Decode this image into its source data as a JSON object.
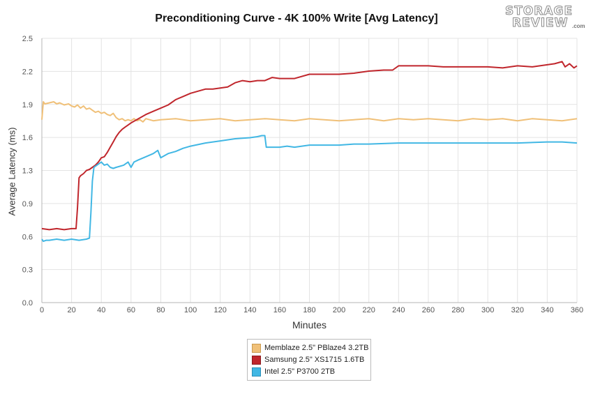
{
  "chart_data": {
    "type": "line",
    "title": "Preconditioning Curve - 4K 100% Write [Avg Latency]",
    "xlabel": "Minutes",
    "ylabel": "Average Latency (ms)",
    "xlim": [
      0,
      360
    ],
    "ylim": [
      0,
      2.5
    ],
    "xticks": [
      "0",
      "20",
      "40",
      "60",
      "80",
      "100",
      "120",
      "140",
      "160",
      "180",
      "200",
      "220",
      "240",
      "260",
      "280",
      "300",
      "320",
      "340",
      "360"
    ],
    "yticks": [
      "0.0",
      "0.3",
      "0.6",
      "0.9",
      "1.3",
      "1.6",
      "1.9",
      "2.2",
      "2.5"
    ],
    "grid": true,
    "legend_position": "bottom-center",
    "series": [
      {
        "name": "Memblaze 2.5\" PBlaze4 3.2TB",
        "color": "#f0c078",
        "x": [
          0,
          1,
          2,
          5,
          8,
          10,
          12,
          15,
          18,
          20,
          22,
          24,
          26,
          28,
          30,
          32,
          34,
          36,
          38,
          40,
          42,
          44,
          46,
          48,
          50,
          52,
          54,
          56,
          58,
          60,
          62,
          64,
          66,
          68,
          70,
          75,
          80,
          90,
          100,
          110,
          120,
          130,
          140,
          150,
          160,
          170,
          180,
          190,
          200,
          210,
          220,
          230,
          240,
          250,
          260,
          270,
          280,
          290,
          300,
          310,
          320,
          330,
          340,
          350,
          360
        ],
        "values": [
          1.73,
          1.9,
          1.88,
          1.89,
          1.9,
          1.88,
          1.89,
          1.87,
          1.88,
          1.86,
          1.85,
          1.87,
          1.84,
          1.86,
          1.83,
          1.84,
          1.82,
          1.8,
          1.81,
          1.79,
          1.8,
          1.78,
          1.77,
          1.79,
          1.75,
          1.73,
          1.74,
          1.72,
          1.73,
          1.72,
          1.74,
          1.72,
          1.73,
          1.71,
          1.74,
          1.72,
          1.73,
          1.74,
          1.72,
          1.73,
          1.74,
          1.72,
          1.73,
          1.74,
          1.73,
          1.72,
          1.74,
          1.73,
          1.72,
          1.73,
          1.74,
          1.72,
          1.74,
          1.73,
          1.74,
          1.73,
          1.72,
          1.74,
          1.73,
          1.74,
          1.72,
          1.74,
          1.73,
          1.72,
          1.74
        ]
      },
      {
        "name": "Samsung 2.5\" XS1715 1.6TB",
        "color": "#c0262c",
        "x": [
          0,
          5,
          10,
          15,
          20,
          23,
          24,
          25,
          26,
          28,
          30,
          32,
          34,
          36,
          38,
          40,
          42,
          44,
          46,
          48,
          50,
          52,
          54,
          56,
          58,
          60,
          65,
          70,
          75,
          80,
          85,
          90,
          95,
          100,
          105,
          110,
          115,
          120,
          125,
          130,
          135,
          140,
          145,
          150,
          155,
          160,
          165,
          170,
          180,
          190,
          200,
          210,
          220,
          230,
          236,
          240,
          250,
          260,
          270,
          280,
          290,
          300,
          310,
          320,
          330,
          340,
          345,
          350,
          352,
          355,
          358,
          360
        ],
        "values": [
          0.7,
          0.69,
          0.7,
          0.69,
          0.7,
          0.7,
          0.9,
          1.18,
          1.2,
          1.22,
          1.25,
          1.26,
          1.28,
          1.3,
          1.33,
          1.37,
          1.38,
          1.42,
          1.47,
          1.52,
          1.57,
          1.61,
          1.64,
          1.66,
          1.68,
          1.7,
          1.74,
          1.78,
          1.81,
          1.84,
          1.87,
          1.92,
          1.95,
          1.98,
          2.0,
          2.02,
          2.02,
          2.03,
          2.04,
          2.08,
          2.1,
          2.09,
          2.1,
          2.1,
          2.13,
          2.12,
          2.12,
          2.12,
          2.16,
          2.16,
          2.16,
          2.17,
          2.19,
          2.2,
          2.2,
          2.24,
          2.24,
          2.24,
          2.23,
          2.23,
          2.23,
          2.23,
          2.22,
          2.24,
          2.23,
          2.25,
          2.26,
          2.28,
          2.23,
          2.26,
          2.22,
          2.24
        ]
      },
      {
        "name": "Intel 2.5\" P3700 2TB",
        "color": "#41b7e4",
        "x": [
          0,
          1,
          3,
          5,
          10,
          15,
          20,
          25,
          30,
          32,
          33,
          34,
          35,
          37,
          40,
          42,
          44,
          46,
          48,
          50,
          55,
          58,
          60,
          62,
          65,
          70,
          75,
          78,
          80,
          85,
          90,
          95,
          100,
          110,
          120,
          130,
          140,
          145,
          148,
          150,
          151,
          152,
          155,
          160,
          165,
          170,
          175,
          180,
          190,
          200,
          210,
          220,
          240,
          260,
          280,
          300,
          320,
          340,
          350,
          360
        ],
        "values": [
          0.6,
          0.58,
          0.59,
          0.59,
          0.6,
          0.59,
          0.6,
          0.59,
          0.6,
          0.61,
          0.85,
          1.15,
          1.28,
          1.3,
          1.33,
          1.3,
          1.31,
          1.28,
          1.27,
          1.28,
          1.3,
          1.33,
          1.28,
          1.33,
          1.35,
          1.38,
          1.41,
          1.44,
          1.37,
          1.41,
          1.43,
          1.46,
          1.48,
          1.51,
          1.53,
          1.55,
          1.56,
          1.57,
          1.58,
          1.58,
          1.47,
          1.47,
          1.47,
          1.47,
          1.48,
          1.47,
          1.48,
          1.49,
          1.49,
          1.49,
          1.5,
          1.5,
          1.51,
          1.51,
          1.51,
          1.51,
          1.51,
          1.52,
          1.52,
          1.51
        ]
      }
    ]
  },
  "logo": {
    "line1": "STORAGE",
    "line2": "REVIEW",
    "suffix": ".com"
  }
}
